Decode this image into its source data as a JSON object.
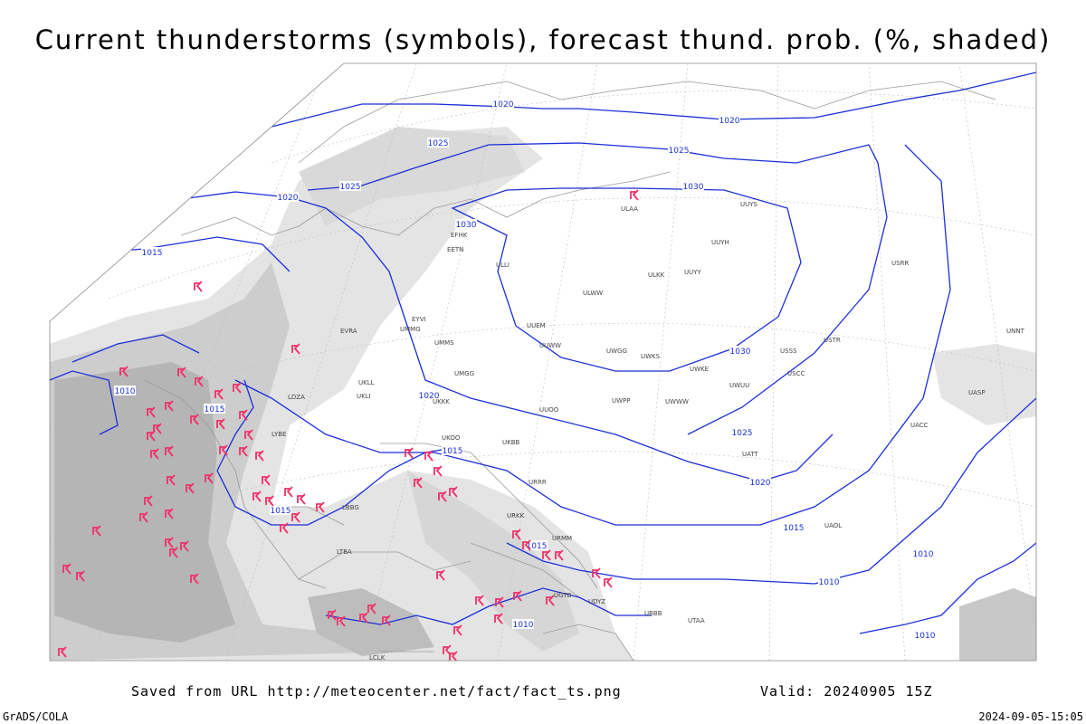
{
  "header": {
    "title": "Current thunderstorms (symbols), forecast thund. prob. (%, shaded)"
  },
  "isobar_labels": [
    "1015",
    "1020",
    "1025",
    "1030",
    "1030",
    "1025",
    "1020",
    "1015",
    "1010",
    "1010",
    "1015",
    "1020",
    "1025",
    "1030",
    "1020",
    "1015",
    "1010",
    "1015",
    "1010",
    "1010",
    "1020",
    "1025",
    "1015"
  ],
  "stations": [
    "ULAA",
    "UUYS",
    "UUYH",
    "ULLI",
    "ULKK",
    "UUYY",
    "ULWW",
    "UUEM",
    "UUWW",
    "UWGG",
    "UWKS",
    "UWKE",
    "UWUU",
    "UWWW",
    "UUOO",
    "UWPP",
    "UMMS",
    "UMGG",
    "UKLL",
    "UKLI",
    "UKKK",
    "UKOO",
    "UKBB",
    "UMMG",
    "EVRA",
    "EYVI",
    "EETN",
    "EFHK",
    "USRR",
    "USSS",
    "USCC",
    "USTR",
    "UACC",
    "UATT",
    "UAOL",
    "URRR",
    "URKK",
    "URMM",
    "UGTB",
    "UDYZ",
    "UBBB",
    "UTAA",
    "LTBA",
    "LCLK",
    "LBBG",
    "LYBE",
    "LDZA",
    "UNNT",
    "UASP"
  ],
  "footer": {
    "source": "Saved from URL http://meteocenter.net/fact/fact_ts.png",
    "valid": "Valid: 20240905 15Z",
    "credit": "GrADS/COLA",
    "timestamp": "2024-09-05-15:05"
  }
}
